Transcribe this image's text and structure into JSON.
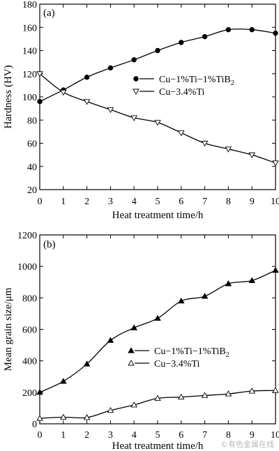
{
  "chart_data": [
    {
      "type": "line",
      "panel_label": "(a)",
      "xlabel": "Heat treatment time/h",
      "ylabel": "Hardness (HV)",
      "xlim": [
        0,
        10
      ],
      "ylim": [
        20,
        180
      ],
      "x_ticks": [
        "0",
        "1",
        "2",
        "3",
        "4",
        "5",
        "6",
        "7",
        "8",
        "9",
        "10"
      ],
      "y_ticks": [
        "20",
        "40",
        "60",
        "80",
        "100",
        "120",
        "140",
        "160",
        "180"
      ],
      "legend_position": "middle-right",
      "series": [
        {
          "name_parts": [
            "Cu−1%Ti−1%TiB",
            "2"
          ],
          "marker": "filled-circle",
          "x": [
            0,
            1,
            2,
            3,
            4,
            5,
            6,
            7,
            8,
            9,
            10
          ],
          "values": [
            96,
            106,
            117,
            125,
            132,
            140,
            147,
            152,
            158,
            158,
            155
          ]
        },
        {
          "name_parts": [
            "Cu−3.4%Ti",
            ""
          ],
          "marker": "open-triangle-down",
          "x": [
            0,
            1,
            2,
            3,
            4,
            5,
            6,
            7,
            8,
            9,
            10
          ],
          "values": [
            120,
            104,
            96,
            89,
            82,
            78,
            69,
            60,
            55,
            50,
            43
          ]
        }
      ]
    },
    {
      "type": "line",
      "panel_label": "(b)",
      "xlabel": "Heat treatment time/h",
      "ylabel": "Mean grain size/μm",
      "xlim": [
        0,
        10
      ],
      "ylim": [
        0,
        1200
      ],
      "x_ticks": [
        "0",
        "1",
        "2",
        "3",
        "4",
        "5",
        "6",
        "7",
        "8",
        "9",
        "10"
      ],
      "y_ticks": [
        "0",
        "200",
        "400",
        "600",
        "800",
        "1000",
        "1200"
      ],
      "legend_position": "lower-middle",
      "series": [
        {
          "name_parts": [
            "Cu−1%Ti−1%TiB",
            "2"
          ],
          "marker": "filled-triangle-up",
          "x": [
            0,
            1,
            2,
            3,
            4,
            5,
            6,
            7,
            8,
            9,
            10
          ],
          "values": [
            200,
            270,
            380,
            530,
            610,
            670,
            780,
            810,
            890,
            910,
            975
          ]
        },
        {
          "name_parts": [
            "Cu−3.4%Ti",
            ""
          ],
          "marker": "open-triangle-up",
          "x": [
            0,
            1,
            2,
            3,
            4,
            5,
            6,
            7,
            8,
            9,
            10
          ],
          "values": [
            35,
            42,
            40,
            85,
            120,
            162,
            170,
            180,
            190,
            208,
            212
          ]
        }
      ]
    }
  ],
  "watermark": "©有色金属在线"
}
